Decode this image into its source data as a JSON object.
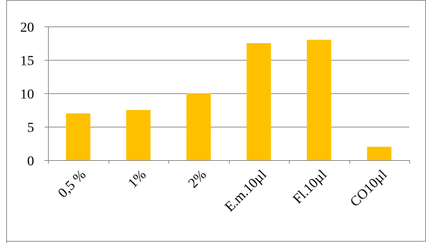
{
  "chart_data": {
    "type": "bar",
    "categories": [
      "0,5 %",
      "1%",
      "2%",
      "E.m.10µl",
      "Fl.10µl",
      "CO10µl"
    ],
    "values": [
      7,
      7.5,
      10,
      17.5,
      18,
      2
    ],
    "title": "",
    "xlabel": "",
    "ylabel": "",
    "ylim": [
      0,
      20
    ],
    "yticks": [
      "0",
      "5",
      "10",
      "15",
      "20"
    ],
    "grid": true,
    "legend": "none",
    "bar_color": "#FFC000",
    "grid_color": "#868686",
    "axis_color": "#868686",
    "border_color": "#868686"
  }
}
